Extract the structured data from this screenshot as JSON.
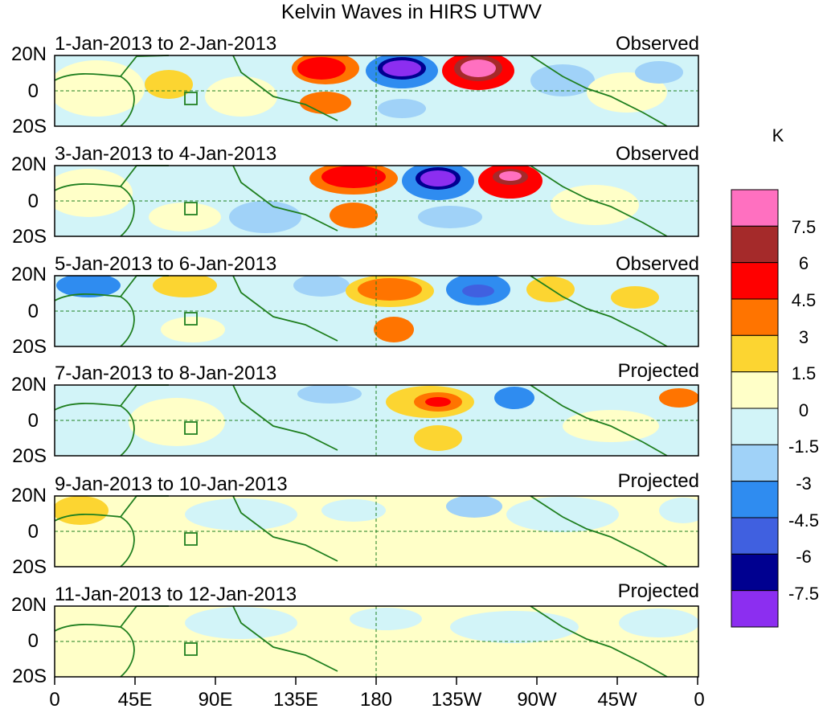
{
  "chart_data": {
    "type": "heatmap",
    "title": "Kelvin Waves in HIRS UTWV",
    "colorbar_unit": "K",
    "colorbar_ticks": [
      "7.5",
      "6",
      "4.5",
      "3",
      "1.5",
      "0",
      "-1.5",
      "-3",
      "-4.5",
      "-6",
      "-7.5"
    ],
    "colorbar_colors": [
      "#ff70c0",
      "#a52a2a",
      "#ff0000",
      "#ff7400",
      "#fcd531",
      "#ffffc8",
      "#d2f4f8",
      "#a0d2f8",
      "#2f8cf0",
      "#4060e0",
      "#000090",
      "#8c2ef0"
    ],
    "y_ticks": [
      "20N",
      "0",
      "20S"
    ],
    "x_ticks": [
      "0",
      "45E",
      "90E",
      "135E",
      "180",
      "135W",
      "90W",
      "45W",
      "0"
    ],
    "panels": [
      {
        "period": "1-Jan-2013 to 2-Jan-2013",
        "status": "Observed"
      },
      {
        "period": "3-Jan-2013 to 4-Jan-2013",
        "status": "Observed"
      },
      {
        "period": "5-Jan-2013 to 6-Jan-2013",
        "status": "Observed"
      },
      {
        "period": "7-Jan-2013 to 8-Jan-2013",
        "status": "Projected"
      },
      {
        "period": "9-Jan-2013 to 10-Jan-2013",
        "status": "Projected"
      },
      {
        "period": "11-Jan-2013 to 12-Jan-2013",
        "status": "Projected"
      }
    ]
  }
}
